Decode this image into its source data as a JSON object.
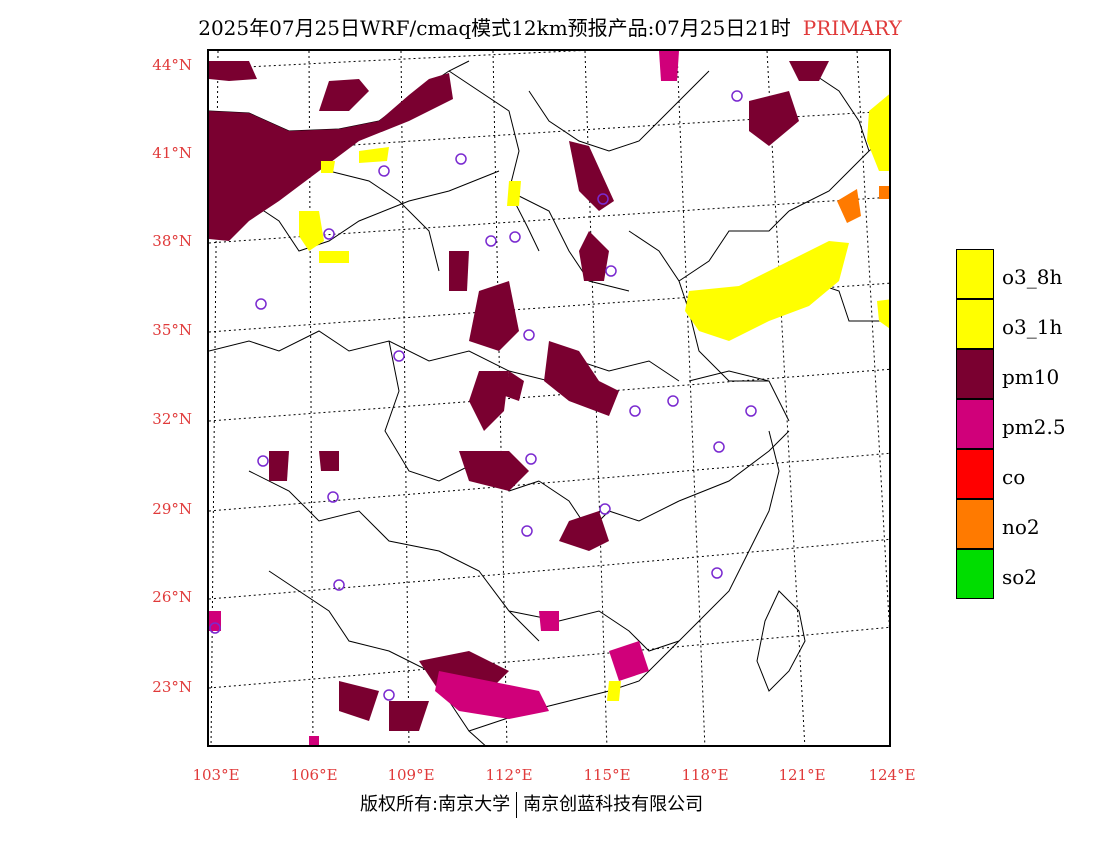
{
  "header": {
    "title": "2025年07月25日WRF/cmaq模式12km预报产品:07月25日21时",
    "tag": "PRIMARY"
  },
  "axes": {
    "lat_labels": [
      "44°N",
      "41°N",
      "38°N",
      "35°N",
      "32°N",
      "29°N",
      "26°N",
      "23°N"
    ],
    "lon_labels": [
      "103°E",
      "106°E",
      "109°E",
      "112°E",
      "115°E",
      "118°E",
      "121°E",
      "124°E"
    ]
  },
  "legend": {
    "items": [
      {
        "label": "o3_8h",
        "color": "#ffff00"
      },
      {
        "label": "o3_1h",
        "color": "#ffff00"
      },
      {
        "label": "pm10",
        "color": "#7a0030"
      },
      {
        "label": "pm2.5",
        "color": "#d0007a"
      },
      {
        "label": "co",
        "color": "#ff0000"
      },
      {
        "label": "no2",
        "color": "#ff7a00"
      },
      {
        "label": "so2",
        "color": "#00dd00"
      }
    ]
  },
  "footer": {
    "left": "版权所有:南京大学",
    "right": "南京创蓝科技有限公司"
  },
  "colors": {
    "axis_label": "#e03a3a",
    "station_marker": "#7a2ad0"
  }
}
